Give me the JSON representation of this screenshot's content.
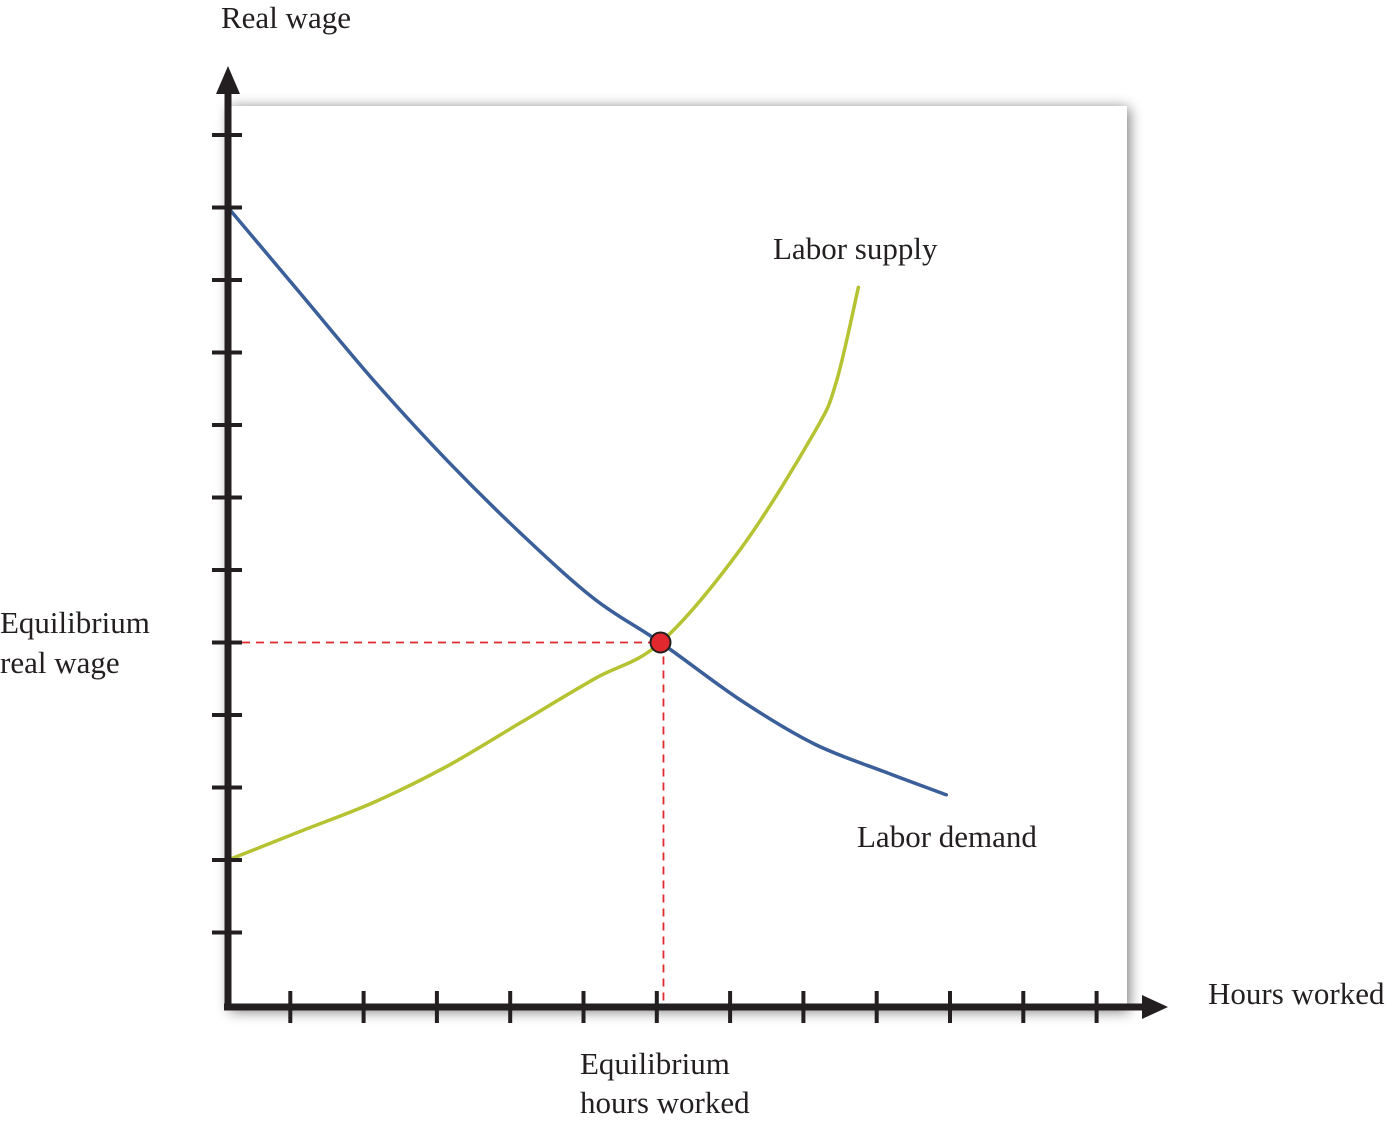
{
  "colors": {
    "axis": "#231f20",
    "labor_demand": "#3b5f9a",
    "labor_supply": "#b5c332",
    "equilibrium_guides": "#e0282e",
    "equilibrium_point": "#e0282e"
  },
  "chart_data": {
    "type": "line",
    "title": "",
    "xlabel": "Hours worked",
    "ylabel": "Real wage",
    "xlim": [
      0,
      12
    ],
    "ylim": [
      0,
      12.5
    ],
    "x_ticks": [
      1,
      2,
      3,
      4,
      5,
      6,
      7,
      8,
      9,
      10,
      11,
      12
    ],
    "y_ticks": [
      1,
      2,
      3,
      4,
      5,
      6,
      7,
      8,
      9,
      10,
      11,
      12
    ],
    "tick_labels_shown": false,
    "grid": false,
    "legend": "none",
    "series": [
      {
        "name": "Labor demand",
        "color": "#3b5f9a",
        "points": [
          [
            0,
            11
          ],
          [
            1,
            9.8
          ],
          [
            2,
            8.6
          ],
          [
            3,
            7.5
          ],
          [
            4,
            6.5
          ],
          [
            5,
            5.6
          ],
          [
            5.9,
            5.0
          ],
          [
            7,
            4.2
          ],
          [
            8,
            3.6
          ],
          [
            9,
            3.2
          ],
          [
            9.8,
            2.9
          ]
        ]
      },
      {
        "name": "Labor supply",
        "color": "#b5c332",
        "points": [
          [
            0,
            2
          ],
          [
            1,
            2.4
          ],
          [
            2,
            2.8
          ],
          [
            3,
            3.3
          ],
          [
            4,
            3.9
          ],
          [
            5,
            4.5
          ],
          [
            5.9,
            5.0
          ],
          [
            7,
            6.3
          ],
          [
            8,
            7.9
          ],
          [
            8.3,
            8.6
          ],
          [
            8.6,
            9.9
          ]
        ]
      }
    ],
    "equilibrium": {
      "x": 5.9,
      "y": 5.0
    },
    "annotations": {
      "demand_label": "Labor demand",
      "supply_label": "Labor supply",
      "eq_wage_line1": "Equilibrium",
      "eq_wage_line2": "real wage",
      "eq_hours_line1": "Equilibrium",
      "eq_hours_line2": "hours worked"
    }
  }
}
